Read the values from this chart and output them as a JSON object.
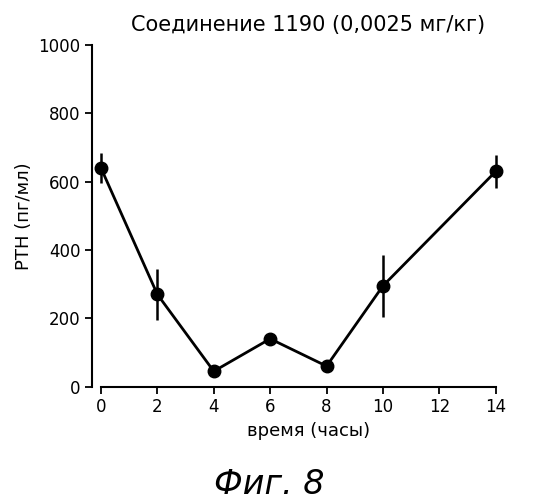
{
  "title": "Соединение 1190 (0,0025 мг/кг)",
  "xlabel": "время (часы)",
  "ylabel": "РТН (пг/мл)",
  "caption": "Фиг. 8",
  "x": [
    0,
    2,
    4,
    6,
    8,
    10,
    14
  ],
  "y": [
    640,
    270,
    45,
    140,
    60,
    295,
    630
  ],
  "yerr": [
    45,
    75,
    12,
    18,
    8,
    90,
    48
  ],
  "xlim": [
    -0.3,
    15.0
  ],
  "ylim": [
    0,
    1000
  ],
  "xticks": [
    0,
    2,
    4,
    6,
    8,
    10,
    12,
    14
  ],
  "yticks": [
    0,
    200,
    400,
    600,
    800,
    1000
  ],
  "line_color": "#000000",
  "marker_color": "#000000",
  "marker_size": 9,
  "line_width": 2.0,
  "background_color": "#ffffff",
  "title_fontsize": 15,
  "label_fontsize": 13,
  "tick_fontsize": 12,
  "caption_fontsize": 24
}
